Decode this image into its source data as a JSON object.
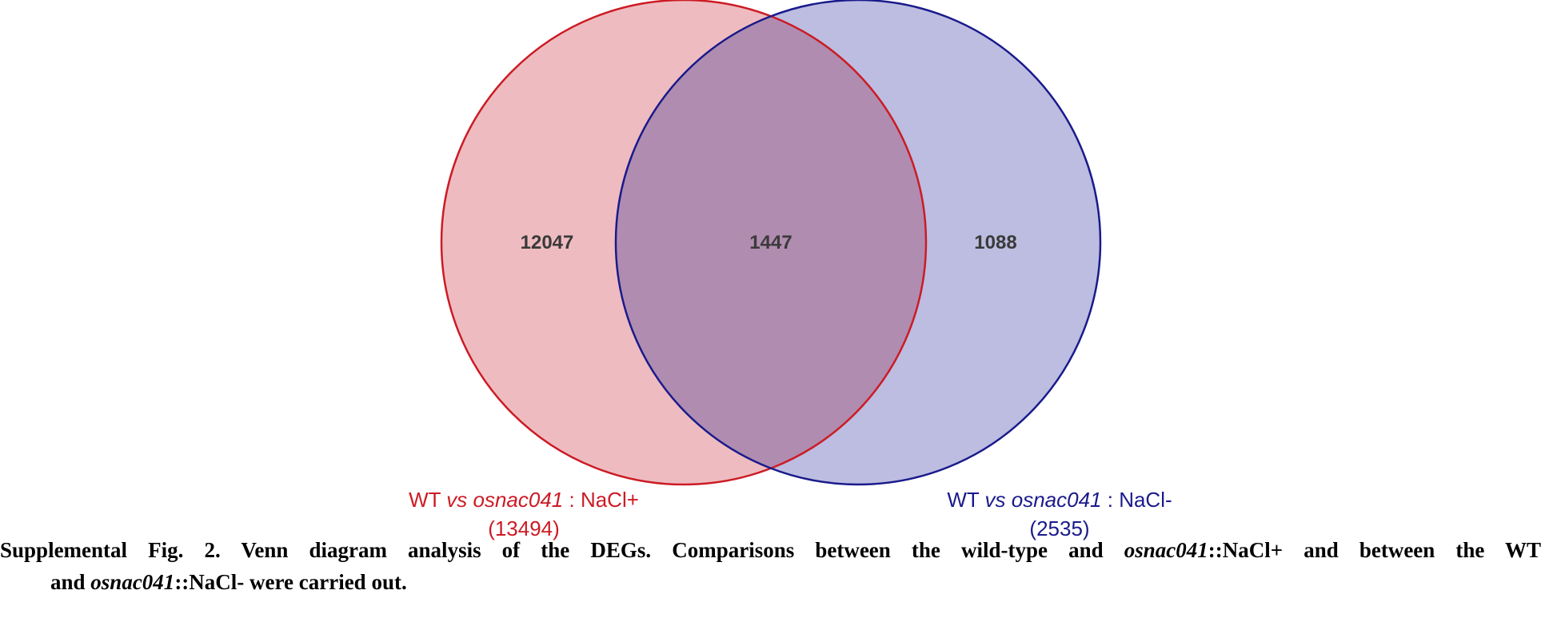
{
  "diagram": {
    "type": "venn",
    "sets": [
      {
        "name_prefix": "WT",
        "name_italic_vs": "vs",
        "name_italic_gene": "osnac041",
        "name_suffix": ": NaCl+",
        "total": "(13494)",
        "only_count": "12047",
        "stroke_color": "#cc1b24",
        "fill_color": "#eebcc0",
        "label_color": "#cc1b24"
      },
      {
        "name_prefix": "WT",
        "name_italic_vs": "vs",
        "name_italic_gene": "osnac041",
        "name_suffix": ": NaCl-",
        "total": "(2535)",
        "only_count": "1088",
        "stroke_color": "#1a1a8c",
        "fill_color": "#bcbde0",
        "label_color": "#1a1a8c"
      }
    ],
    "intersection_count": "1447",
    "intersection_fill_color": "#b08cb0"
  },
  "caption": {
    "line1_part1": "Supplemental Fig. 2. Venn diagram analysis of the DEGs. Comparisons between the wild-type and ",
    "line1_italic": "osnac041",
    "line1_part2": "::NaCl+ and between the WT",
    "line2_part1": "and ",
    "line2_italic": "osnac041",
    "line2_part2": "::NaCl- were carried out."
  }
}
